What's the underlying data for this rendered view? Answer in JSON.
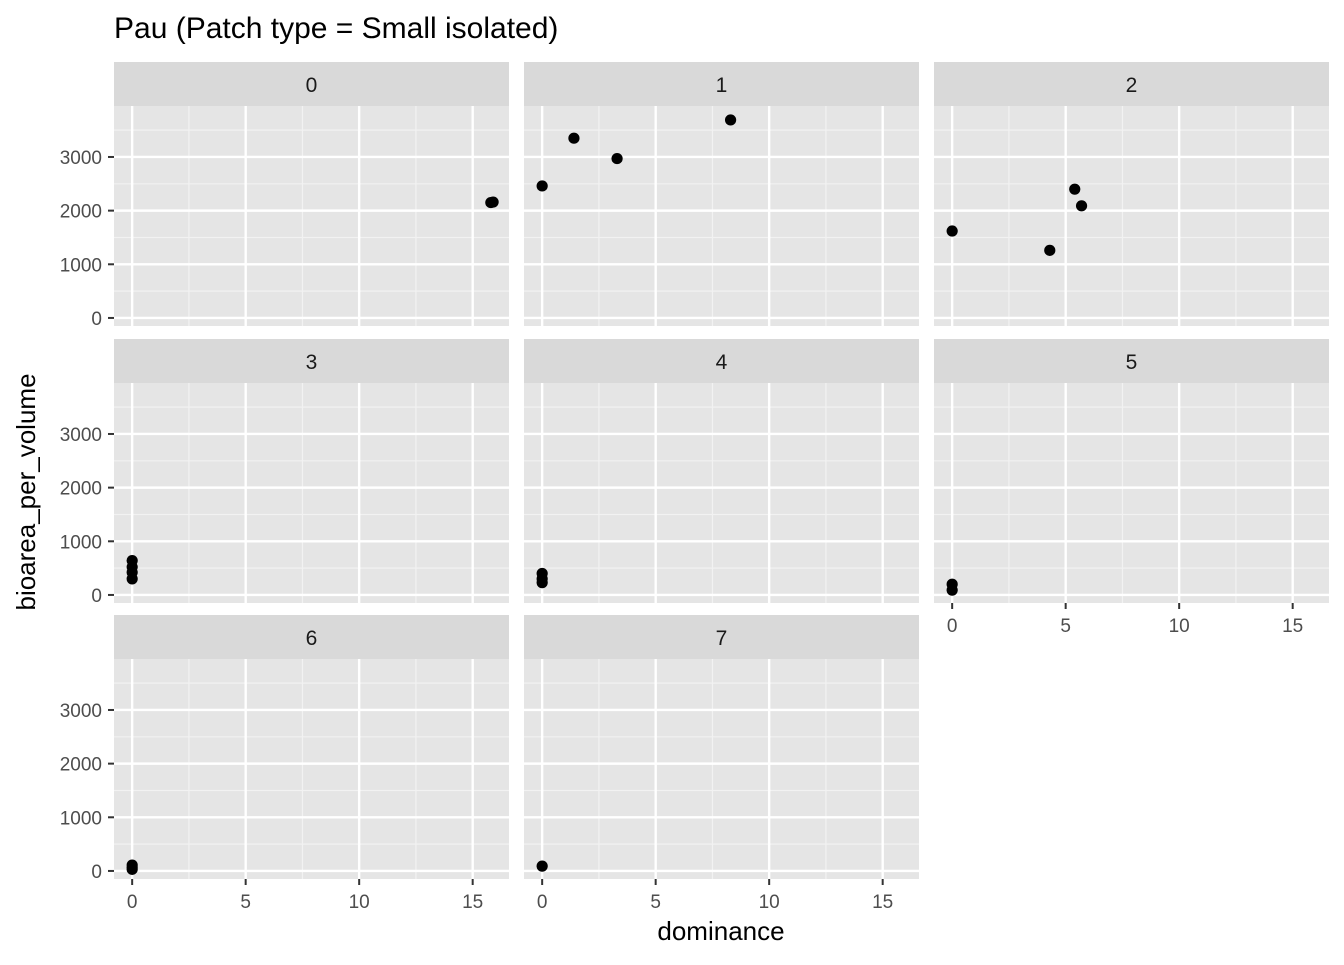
{
  "chart_data": {
    "type": "scatter",
    "title": "Pau (Patch type = Small isolated)",
    "xlabel": "dominance",
    "ylabel": "bioarea_per_volume",
    "xlim": [
      -0.8,
      16.6
    ],
    "ylim": [
      -150,
      3950
    ],
    "x_ticks": [
      0,
      5,
      10,
      15
    ],
    "y_ticks": [
      0,
      1000,
      2000,
      3000
    ],
    "x_tick_labels": [
      "0",
      "5",
      "10",
      "15"
    ],
    "y_tick_labels": [
      "0",
      "1000",
      "2000",
      "3000"
    ],
    "grid": true,
    "legend": "none",
    "point_color": "#000000",
    "panel_background": "#e5e5e5",
    "strip_background": "#d9d9d9",
    "facets": [
      {
        "label": "0",
        "points": [
          {
            "x": 15.8,
            "y": 2150
          },
          {
            "x": 15.9,
            "y": 2160
          }
        ]
      },
      {
        "label": "1",
        "points": [
          {
            "x": 0,
            "y": 2460
          },
          {
            "x": 1.4,
            "y": 3350
          },
          {
            "x": 3.3,
            "y": 2970
          },
          {
            "x": 8.3,
            "y": 3690
          }
        ]
      },
      {
        "label": "2",
        "points": [
          {
            "x": 0,
            "y": 1620
          },
          {
            "x": 4.3,
            "y": 1260
          },
          {
            "x": 5.4,
            "y": 2400
          },
          {
            "x": 5.7,
            "y": 2090
          }
        ]
      },
      {
        "label": "3",
        "points": [
          {
            "x": 0,
            "y": 300
          },
          {
            "x": 0,
            "y": 420
          },
          {
            "x": 0,
            "y": 520
          },
          {
            "x": 0,
            "y": 640
          }
        ]
      },
      {
        "label": "4",
        "points": [
          {
            "x": 0,
            "y": 230
          },
          {
            "x": 0,
            "y": 300
          },
          {
            "x": 0,
            "y": 400
          }
        ]
      },
      {
        "label": "5",
        "points": [
          {
            "x": 0,
            "y": 90
          },
          {
            "x": 0,
            "y": 200
          }
        ]
      },
      {
        "label": "6",
        "points": [
          {
            "x": 0,
            "y": 30
          },
          {
            "x": 0,
            "y": 70
          },
          {
            "x": 0,
            "y": 110
          }
        ]
      },
      {
        "label": "7",
        "points": [
          {
            "x": 0,
            "y": 90
          }
        ]
      }
    ]
  }
}
